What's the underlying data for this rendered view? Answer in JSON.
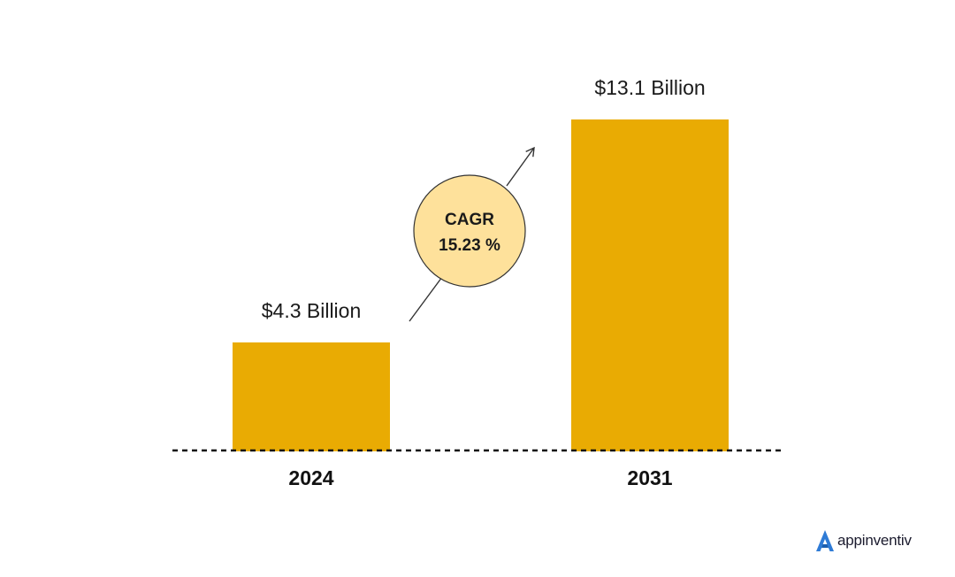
{
  "chart_data": {
    "type": "bar",
    "categories": [
      "2024",
      "2031"
    ],
    "values": [
      4.3,
      13.1
    ],
    "value_labels": [
      "$4.3 Billion",
      "$13.1 Billion"
    ],
    "ylim": [
      0,
      13.1
    ],
    "unit": "Billion USD",
    "annotation": {
      "line1": "CAGR",
      "line2": "15.23 %"
    },
    "colors": {
      "bar": "#E9AB03",
      "badge_fill": "#FEE19B",
      "badge_stroke": "#333333",
      "axis": "#111111"
    },
    "grid": false,
    "legend": "none"
  },
  "brand": {
    "name": "appinventiv",
    "icon": "appinventiv-logo-icon",
    "color": "#2E7BD6"
  }
}
